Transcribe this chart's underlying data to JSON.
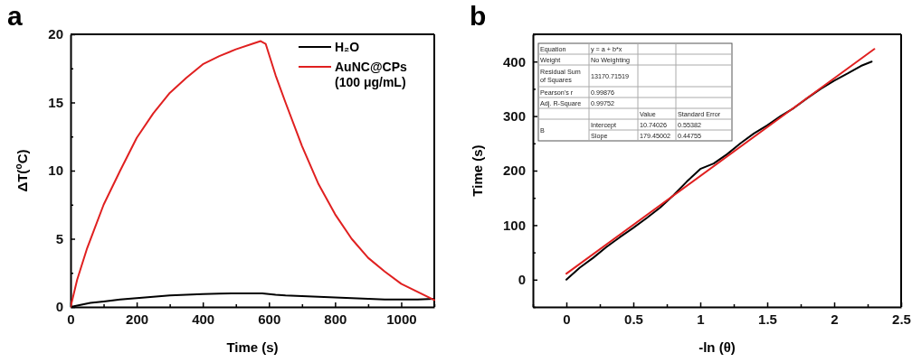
{
  "chart_data": [
    {
      "type": "line",
      "title": "a",
      "xlabel": "Time (s)",
      "ylabel": "ΔT($^{o}$C)",
      "xlim": [
        0,
        1100
      ],
      "ylim": [
        0,
        20
      ],
      "xticks": [
        0,
        {
          "value": 100,
          "label": null
        },
        200,
        {
          "value": 300,
          "label": null
        },
        400,
        {
          "value": 500,
          "label": null
        },
        600,
        {
          "value": 700,
          "label": null
        },
        800,
        {
          "value": 900,
          "label": null
        },
        1000,
        {
          "value": 1100,
          "label": null
        }
      ],
      "yticks": [
        0,
        {
          "value": 2.5,
          "label": null
        },
        5,
        {
          "value": 7.5,
          "label": null
        },
        10,
        {
          "value": 12.5,
          "label": null
        },
        15,
        {
          "value": 17.5,
          "label": null
        },
        20
      ],
      "legend": "top right",
      "grid": false,
      "series": [
        {
          "name": "H₂O",
          "color": "#000000",
          "x": [
            0,
            30,
            60,
            100,
            150,
            200,
            250,
            300,
            350,
            400,
            450,
            500,
            550,
            580,
            620,
            650,
            700,
            750,
            800,
            850,
            900,
            950,
            1000,
            1050,
            1100
          ],
          "values": [
            0,
            0.15,
            0.3,
            0.4,
            0.55,
            0.65,
            0.75,
            0.85,
            0.9,
            0.95,
            0.98,
            1.0,
            1.0,
            1.0,
            0.9,
            0.85,
            0.8,
            0.75,
            0.7,
            0.65,
            0.6,
            0.55,
            0.55,
            0.55,
            0.6
          ]
        },
        {
          "name": "AuNC@CPs (100 μg/mL)",
          "color": "#e02020",
          "x": [
            0,
            10,
            20,
            50,
            100,
            150,
            200,
            250,
            300,
            350,
            400,
            450,
            500,
            550,
            575,
            590,
            620,
            650,
            700,
            750,
            800,
            850,
            900,
            950,
            1000,
            1050,
            1100
          ],
          "values": [
            0,
            1,
            2,
            4.3,
            7.5,
            10,
            12.4,
            14.2,
            15.7,
            16.8,
            17.8,
            18.4,
            18.9,
            19.3,
            19.5,
            19.3,
            17,
            15,
            11.8,
            9,
            6.8,
            5,
            3.6,
            2.6,
            1.7,
            1.1,
            0.5
          ]
        }
      ]
    },
    {
      "type": "line",
      "title": "b",
      "xlabel": "-ln (θ)",
      "ylabel": "Time (s)",
      "xlim": [
        -0.25,
        2.5
      ],
      "ylim": [
        -50,
        450
      ],
      "xticks": [
        {
          "value": -0.25,
          "label": null
        },
        0,
        {
          "value": 0.25,
          "label": null
        },
        0.5,
        {
          "value": 0.75,
          "label": null
        },
        1,
        {
          "value": 1.25,
          "label": null
        },
        1.5,
        {
          "value": 1.75,
          "label": null
        },
        2,
        {
          "value": 2.25,
          "label": null
        },
        2.5
      ],
      "yticks": [
        {
          "value": -50,
          "label": null
        },
        0,
        {
          "value": 50,
          "label": null
        },
        100,
        {
          "value": 150,
          "label": null
        },
        200,
        {
          "value": 250,
          "label": null
        },
        300,
        {
          "value": 350,
          "label": null
        },
        400,
        {
          "value": 450,
          "label": null
        }
      ],
      "legend": false,
      "grid": false,
      "annotations": [
        "Equation",
        "y = a + b*x",
        "Weight",
        "No Weighting",
        "Residual Sum of Squares",
        "13170.71519",
        "Pearson's r",
        "0.99876",
        "Adj. R-Square",
        "0.99752",
        "Value",
        "Standard Error",
        "B",
        "Intercept",
        "10.74026",
        "0.55382",
        "Slope",
        "179.45002",
        "0.44755"
      ],
      "series": [
        {
          "color": "#000000",
          "x": [
            0,
            0.1,
            0.2,
            0.3,
            0.4,
            0.5,
            0.6,
            0.7,
            0.8,
            0.9,
            1.0,
            1.1,
            1.2,
            1.3,
            1.4,
            1.5,
            1.6,
            1.7,
            1.8,
            1.9,
            2.0,
            2.1,
            2.2,
            2.28
          ],
          "values": [
            0,
            22,
            40,
            60,
            78,
            95,
            113,
            132,
            155,
            180,
            203,
            213,
            230,
            250,
            268,
            283,
            300,
            315,
            333,
            350,
            365,
            378,
            392,
            400
          ]
        },
        {
          "color": "#e02020",
          "x": [
            0,
            2.3
          ],
          "values": [
            11,
            423
          ]
        }
      ]
    }
  ]
}
